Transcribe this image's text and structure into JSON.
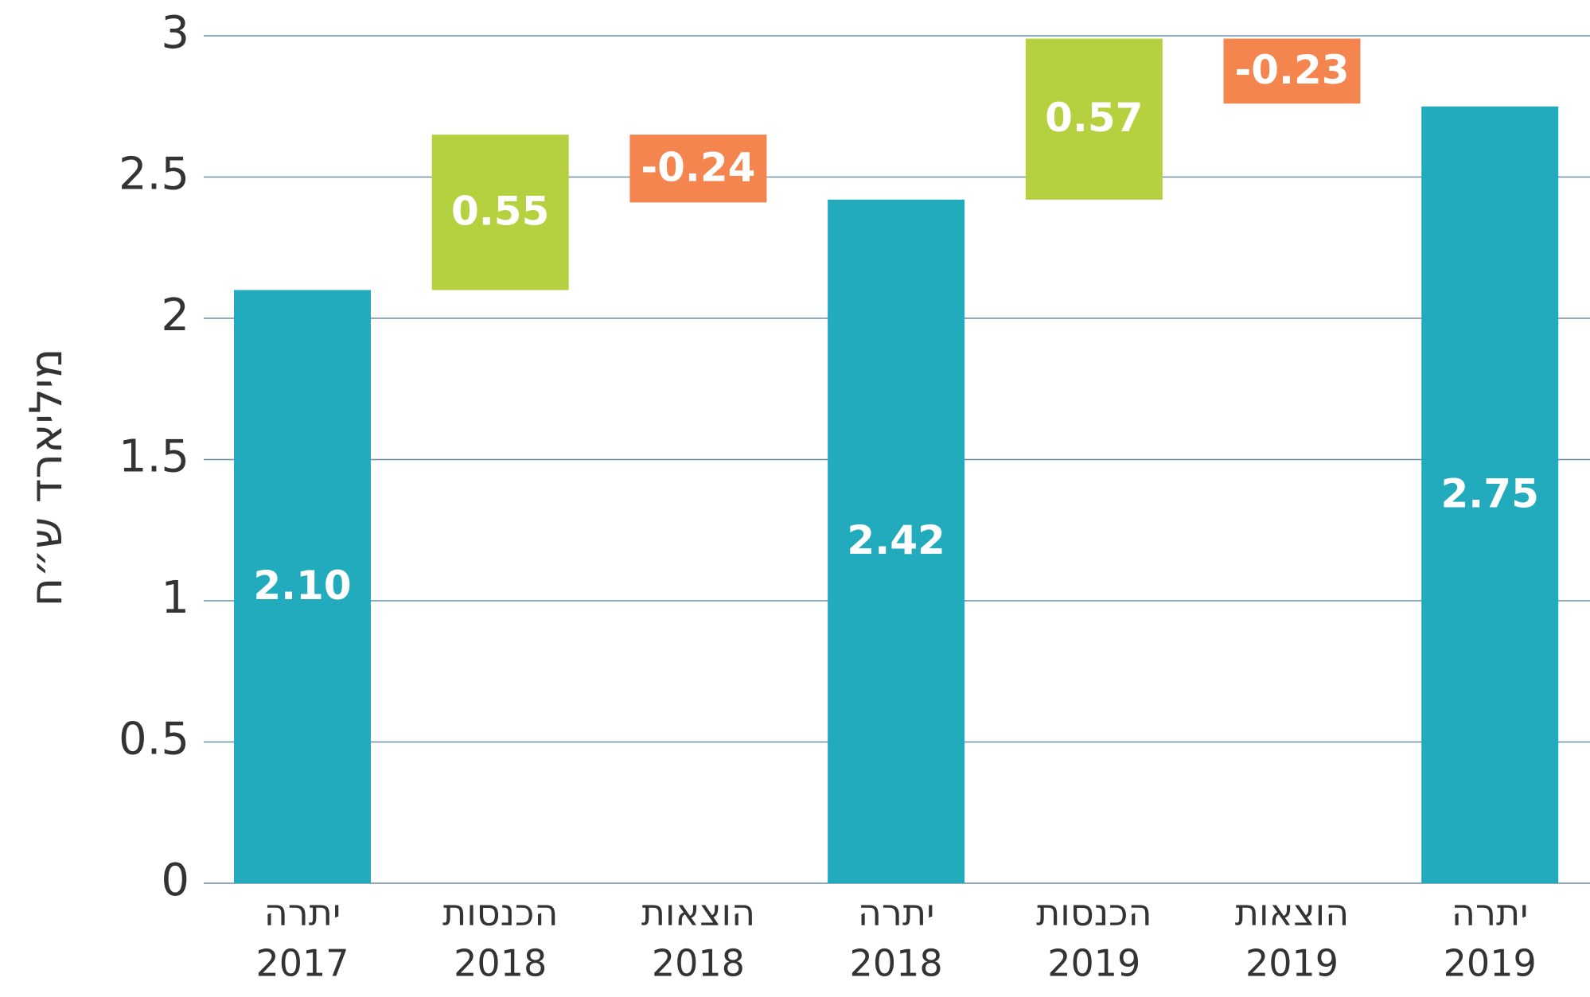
{
  "chart_data": {
    "type": "waterfall",
    "ylabel": "מיליארד ש״ח",
    "categories": [
      [
        "יתרה",
        "2017"
      ],
      [
        "הכנסות",
        "2018"
      ],
      [
        "הוצאות",
        "2018"
      ],
      [
        "יתרה",
        "2018"
      ],
      [
        "הכנסות",
        "2019"
      ],
      [
        "הוצאות",
        "2019"
      ],
      [
        "יתרה",
        "2019"
      ]
    ],
    "measure": [
      "total",
      "relative",
      "relative",
      "total",
      "relative",
      "relative",
      "total"
    ],
    "values": [
      2.1,
      0.55,
      -0.24,
      2.42,
      0.57,
      -0.23,
      2.75
    ],
    "value_labels": [
      "2.10",
      "0.55",
      "-0.24",
      "2.42",
      "0.57",
      "-0.23",
      "2.75"
    ],
    "colors": {
      "total": "#22aabd",
      "increase": "#b5d13f",
      "decrease": "#f4854f"
    },
    "ylim": [
      0,
      3
    ],
    "yticks": [
      0,
      0.5,
      1,
      1.5,
      2,
      2.5,
      3
    ],
    "grid": true
  }
}
